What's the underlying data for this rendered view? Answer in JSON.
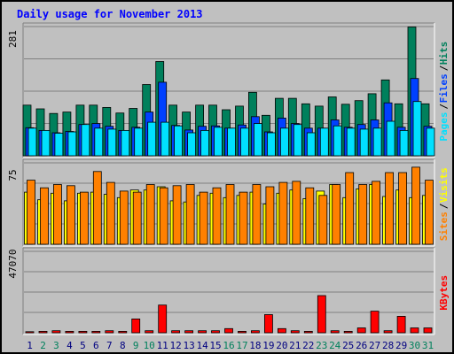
{
  "chart_data": {
    "title": "Daily usage for November 2013",
    "type": "bar",
    "categories": [
      "1",
      "2",
      "3",
      "4",
      "5",
      "6",
      "7",
      "8",
      "9",
      "10",
      "11",
      "12",
      "13",
      "14",
      "15",
      "16",
      "17",
      "18",
      "19",
      "20",
      "21",
      "22",
      "23",
      "24",
      "25",
      "26",
      "27",
      "28",
      "29",
      "30",
      "31"
    ],
    "weekend_days": [
      "2",
      "3",
      "9",
      "10",
      "16",
      "17",
      "23",
      "24",
      "30",
      "31"
    ],
    "panels": [
      {
        "name": "requests",
        "ymax_label": "281",
        "ymax": 281,
        "series": [
          {
            "name": "Hits",
            "color": "#00805c",
            "values": [
              110,
              102,
              92,
              95,
              110,
              110,
              105,
              93,
              103,
              155,
              205,
              110,
              95,
              110,
              110,
              100,
              108,
              138,
              88,
              125,
              125,
              113,
              108,
              128,
              112,
              120,
              135,
              165,
              113,
              280,
              113
            ]
          },
          {
            "name": "Files",
            "color": "#0040ff",
            "values": [
              61,
              55,
              50,
              53,
              68,
              70,
              64,
              55,
              62,
              95,
              160,
              66,
              56,
              64,
              65,
              60,
              67,
              85,
              52,
              82,
              70,
              60,
              60,
              78,
              62,
              68,
              78,
              115,
              62,
              168,
              64
            ]
          },
          {
            "name": "Pages",
            "color": "#00e0ff",
            "values": [
              60,
              55,
              49,
              52,
              68,
              60,
              58,
              55,
              60,
              73,
              73,
              65,
              50,
              55,
              62,
              60,
              60,
              70,
              50,
              60,
              68,
              50,
              60,
              65,
              60,
              58,
              60,
              75,
              55,
              118,
              60
            ]
          }
        ]
      },
      {
        "name": "visitors",
        "ymax_label": "75",
        "ymax": 75,
        "series": [
          {
            "name": "Visits",
            "color": "#ffff00",
            "values": [
              48,
              41,
              47,
              40,
              47,
              48,
              46,
              43,
              50,
              50,
              53,
              40,
              39,
              45,
              47,
              43,
              45,
              48,
              37,
              47,
              50,
              42,
              49,
              55,
              43,
              51,
              55,
              44,
              50,
              43,
              45
            ]
          },
          {
            "name": "Sites",
            "color": "#ff8000",
            "values": [
              59,
              52,
              55,
              54,
              48,
              67,
              57,
              49,
              48,
              55,
              52,
              54,
              55,
              48,
              52,
              55,
              48,
              55,
              53,
              57,
              58,
              52,
              45,
              55,
              66,
              55,
              58,
              66,
              66,
              71,
              59
            ]
          }
        ]
      },
      {
        "name": "kbytes",
        "ymax_label": "47070",
        "ymax": 47070,
        "series": [
          {
            "name": "KBytes",
            "color": "#ff0000",
            "values": [
              600,
              800,
              1200,
              800,
              800,
              800,
              1200,
              800,
              8000,
              1200,
              16000,
              1200,
              1200,
              1200,
              1200,
              2400,
              800,
              1200,
              10500,
              2400,
              1200,
              800,
              21500,
              1200,
              800,
              2800,
              12500,
              1200,
              9500,
              2800,
              2800
            ]
          }
        ]
      }
    ],
    "legends": [
      {
        "items": [
          {
            "text": "Pages",
            "color": "#00e0ff"
          },
          {
            "text": "/",
            "color": "#000000"
          },
          {
            "text": "Files",
            "color": "#0040ff"
          },
          {
            "text": "/",
            "color": "#000000"
          },
          {
            "text": "Hits",
            "color": "#00805c"
          }
        ]
      },
      {
        "items": [
          {
            "text": "Sites",
            "color": "#ff8000"
          },
          {
            "text": "/",
            "color": "#000000"
          },
          {
            "text": "Visits",
            "color": "#ffff00"
          }
        ]
      },
      {
        "items": [
          {
            "text": "KBytes",
            "color": "#ff0000"
          }
        ]
      }
    ],
    "colors": {
      "title": "#0000ff",
      "weekday_label": "#000080",
      "weekend_label": "#00805c",
      "panel_background": "#c0c0c0",
      "gridline": "#808080"
    }
  }
}
